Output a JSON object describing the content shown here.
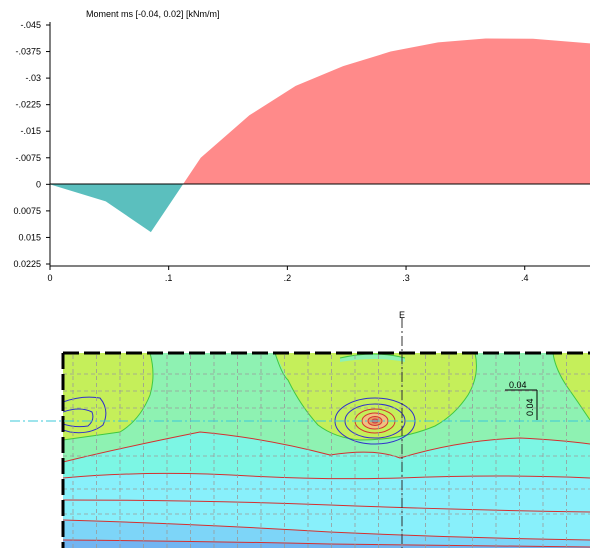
{
  "chart_data": [
    {
      "type": "area",
      "title": "Moment ms [-0.04, 0.02]  [kNm/m]",
      "x_ticks": [
        {
          "value": 0,
          "label": "0"
        },
        {
          "value": 0.1,
          "label": ".1"
        },
        {
          "value": 0.2,
          "label": ".2"
        },
        {
          "value": 0.3,
          "label": ".3"
        },
        {
          "value": 0.4,
          "label": ".4"
        }
      ],
      "y_ticks": [
        {
          "value": -0.045,
          "label": "-.045"
        },
        {
          "value": -0.0375,
          "label": "-.0375"
        },
        {
          "value": -0.03,
          "label": "-.03"
        },
        {
          "value": -0.0225,
          "label": "-.0225"
        },
        {
          "value": -0.015,
          "label": "-.015"
        },
        {
          "value": -0.0075,
          "label": "-.0075"
        },
        {
          "value": 0,
          "label": "0"
        },
        {
          "value": 0.0075,
          "label": "0.0075"
        },
        {
          "value": 0.015,
          "label": "0.015"
        },
        {
          "value": 0.0225,
          "label": "0.0225"
        }
      ],
      "xlim": [
        0,
        0.455
      ],
      "ylim": [
        -0.045,
        0.0225
      ],
      "y_axis_inverted": true,
      "grid": false,
      "series": [
        {
          "x": [
            0,
            0.047,
            0.085,
            0.112,
            0.127,
            0.168,
            0.207,
            0.247,
            0.287,
            0.327,
            0.367,
            0.407,
            0.455
          ],
          "y": [
            0,
            0.0048,
            0.0135,
            0,
            -0.0075,
            -0.0195,
            -0.0278,
            -0.0334,
            -0.0375,
            -0.0401,
            -0.0412,
            -0.0411,
            -0.0398
          ],
          "positive_color": "#5bbfbe",
          "negative_color": "#ff8a8a"
        }
      ]
    },
    {
      "type": "heatmap",
      "section_marker_label": "E",
      "dimension_labels": [
        "0.04",
        "0.04"
      ],
      "colors": {
        "yellow_green": "#c5ef5a",
        "mint": "#8ef2b2",
        "aqua": "#7cf6e4",
        "cyan": "#88f0fb",
        "light_blue": "#7dd5f8",
        "blue": "#72b5f2",
        "contour_green": "#40c840",
        "contour_red": "#d43030",
        "contour_blue": "#3030cc"
      }
    }
  ]
}
